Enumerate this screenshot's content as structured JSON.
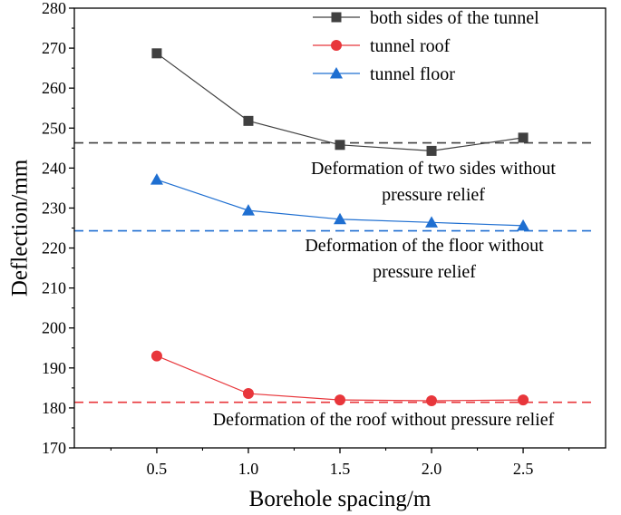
{
  "chart_data": {
    "type": "line",
    "xlabel": "Borehole spacing/m",
    "ylabel": "Deflection/mm",
    "xlim": [
      0.05,
      2.95
    ],
    "ylim": [
      170,
      280
    ],
    "x_ticks": [
      "0.5",
      "1.0",
      "1.5",
      "2.0",
      "2.5"
    ],
    "y_ticks": [
      "170",
      "180",
      "190",
      "200",
      "210",
      "220",
      "230",
      "240",
      "250",
      "260",
      "270",
      "280"
    ],
    "x": [
      0.5,
      1.0,
      1.5,
      2.0,
      2.5
    ],
    "series": [
      {
        "name": "both sides of the tunnel",
        "values": [
          268.7,
          251.8,
          245.8,
          244.3,
          247.6
        ],
        "color": "#404040",
        "marker": "square"
      },
      {
        "name": "tunnel roof",
        "values": [
          193.0,
          183.6,
          182.0,
          181.8,
          182.0
        ],
        "color": "#e8363b",
        "marker": "circle"
      },
      {
        "name": "tunnel floor",
        "values": [
          237.1,
          229.4,
          227.2,
          226.4,
          225.6
        ],
        "color": "#1f6fd1",
        "marker": "triangle"
      }
    ],
    "reference_lines": [
      {
        "value": 246.3,
        "color": "#404040",
        "label_lines": [
          "Deformation of two sides without",
          "pressure relief"
        ]
      },
      {
        "value": 224.3,
        "color": "#1f6fd1",
        "label_lines": [
          "Deformation of the floor without",
          "pressure relief"
        ]
      },
      {
        "value": 181.4,
        "color": "#e8363b",
        "label_lines": [
          "Deformation of the roof without pressure relief"
        ]
      }
    ],
    "legend_position": "top-right",
    "grid": false
  }
}
